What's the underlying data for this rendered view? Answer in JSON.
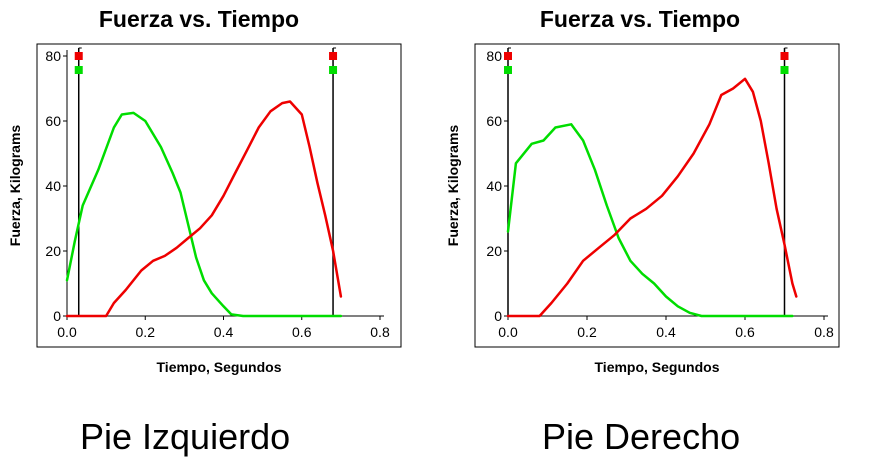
{
  "chart_data": [
    {
      "type": "line",
      "title": "Fuerza vs. Tiempo",
      "xlabel": "Tiempo, Segundos",
      "ylabel": "Fuerza, Kilograms",
      "xlim": [
        0,
        0.8
      ],
      "ylim": [
        0,
        80
      ],
      "xticks": [
        "0.0",
        "0.2",
        "0.4",
        "0.6",
        "0.8"
      ],
      "yticks": [
        "0",
        "20",
        "40",
        "60",
        "80"
      ],
      "grid": false,
      "caption": "Pie Izquierdo",
      "markers": [
        0.03,
        0.68
      ],
      "series": [
        {
          "color": "#00dd00",
          "points": [
            [
              0.0,
              11
            ],
            [
              0.02,
              23
            ],
            [
              0.04,
              34
            ],
            [
              0.08,
              45
            ],
            [
              0.12,
              58
            ],
            [
              0.14,
              62
            ],
            [
              0.17,
              62.5
            ],
            [
              0.2,
              60
            ],
            [
              0.24,
              52
            ],
            [
              0.27,
              44
            ],
            [
              0.29,
              38
            ],
            [
              0.31,
              28
            ],
            [
              0.33,
              18
            ],
            [
              0.35,
              11
            ],
            [
              0.37,
              7
            ],
            [
              0.4,
              3
            ],
            [
              0.42,
              0.5
            ],
            [
              0.45,
              0
            ],
            [
              0.7,
              0
            ]
          ]
        },
        {
          "color": "#ee0000",
          "points": [
            [
              0.0,
              0
            ],
            [
              0.1,
              0
            ],
            [
              0.12,
              4
            ],
            [
              0.15,
              8
            ],
            [
              0.19,
              14
            ],
            [
              0.22,
              17
            ],
            [
              0.25,
              18.5
            ],
            [
              0.28,
              21
            ],
            [
              0.31,
              24
            ],
            [
              0.34,
              27
            ],
            [
              0.37,
              31
            ],
            [
              0.4,
              37
            ],
            [
              0.43,
              44
            ],
            [
              0.46,
              51
            ],
            [
              0.49,
              58
            ],
            [
              0.52,
              63
            ],
            [
              0.55,
              65.5
            ],
            [
              0.57,
              66
            ],
            [
              0.6,
              62
            ],
            [
              0.62,
              52
            ],
            [
              0.64,
              41
            ],
            [
              0.66,
              31
            ],
            [
              0.68,
              20
            ],
            [
              0.7,
              6
            ]
          ]
        }
      ]
    },
    {
      "type": "line",
      "title": "Fuerza vs. Tiempo",
      "xlabel": "Tiempo, Segundos",
      "ylabel": "Fuerza, Kilograms",
      "xlim": [
        0,
        0.8
      ],
      "ylim": [
        0,
        80
      ],
      "xticks": [
        "0.0",
        "0.2",
        "0.4",
        "0.6",
        "0.8"
      ],
      "yticks": [
        "0",
        "20",
        "40",
        "60",
        "80"
      ],
      "grid": false,
      "caption": "Pie Derecho",
      "markers": [
        0.0,
        0.7
      ],
      "series": [
        {
          "color": "#00dd00",
          "points": [
            [
              0.0,
              26
            ],
            [
              0.02,
              47
            ],
            [
              0.06,
              53
            ],
            [
              0.09,
              54
            ],
            [
              0.12,
              58
            ],
            [
              0.16,
              59
            ],
            [
              0.19,
              54
            ],
            [
              0.22,
              45
            ],
            [
              0.25,
              34
            ],
            [
              0.28,
              24
            ],
            [
              0.31,
              17
            ],
            [
              0.34,
              13
            ],
            [
              0.37,
              10
            ],
            [
              0.4,
              6
            ],
            [
              0.43,
              3
            ],
            [
              0.46,
              1
            ],
            [
              0.49,
              0
            ],
            [
              0.72,
              0
            ]
          ]
        },
        {
          "color": "#ee0000",
          "points": [
            [
              0.0,
              0
            ],
            [
              0.08,
              0
            ],
            [
              0.11,
              4
            ],
            [
              0.15,
              10
            ],
            [
              0.19,
              17
            ],
            [
              0.23,
              21
            ],
            [
              0.27,
              25
            ],
            [
              0.31,
              30
            ],
            [
              0.35,
              33
            ],
            [
              0.39,
              37
            ],
            [
              0.43,
              43
            ],
            [
              0.47,
              50
            ],
            [
              0.51,
              59
            ],
            [
              0.54,
              68
            ],
            [
              0.57,
              70
            ],
            [
              0.6,
              73
            ],
            [
              0.62,
              69
            ],
            [
              0.64,
              60
            ],
            [
              0.66,
              47
            ],
            [
              0.68,
              33
            ],
            [
              0.7,
              22
            ],
            [
              0.72,
              10
            ],
            [
              0.73,
              6
            ]
          ]
        }
      ]
    }
  ]
}
